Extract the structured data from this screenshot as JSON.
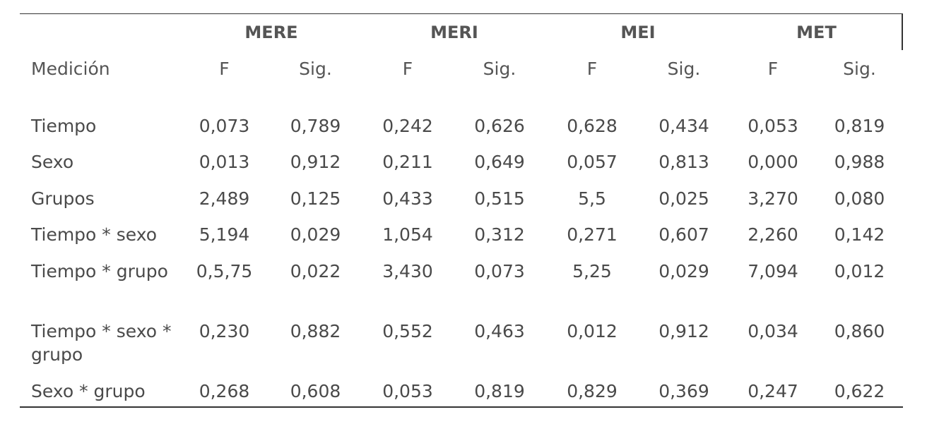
{
  "table": {
    "groups": [
      "MERE",
      "MERI",
      "MEI",
      "MET"
    ],
    "label_header": "Medición",
    "sub_headers": [
      "F",
      "Sig.",
      "F",
      "Sig.",
      "F",
      "Sig.",
      "F",
      "Sig."
    ],
    "rows": [
      {
        "label": "Tiempo",
        "values": [
          "0,073",
          "0,789",
          "0,242",
          "0,626",
          "0,628",
          "0,434",
          "0,053",
          "0,819"
        ]
      },
      {
        "label": "Sexo",
        "values": [
          "0,013",
          "0,912",
          "0,211",
          "0,649",
          "0,057",
          "0,813",
          "0,000",
          "0,988"
        ]
      },
      {
        "label": "Grupos",
        "values": [
          "2,489",
          "0,125",
          "0,433",
          "0,515",
          "5,5",
          "0,025",
          "3,270",
          "0,080"
        ]
      },
      {
        "label": "Tiempo * sexo",
        "values": [
          "5,194",
          "0,029",
          "1,054",
          "0,312",
          "0,271",
          "0,607",
          "2,260",
          "0,142"
        ]
      },
      {
        "label": "Tiempo * grupo",
        "values": [
          "0,5,75",
          "0,022",
          "3,430",
          "0,073",
          "5,25",
          "0,029",
          "7,094",
          "0,012"
        ]
      },
      {
        "label": "Tiempo * sexo * grupo",
        "values": [
          "0,230",
          "0,882",
          "0,552",
          "0,463",
          "0,012",
          "0,912",
          "0,034",
          "0,860"
        ]
      },
      {
        "label": "Sexo * grupo",
        "values": [
          "0,268",
          "0,608",
          "0,053",
          "0,819",
          "0,829",
          "0,369",
          "0,247",
          "0,622"
        ]
      }
    ]
  }
}
